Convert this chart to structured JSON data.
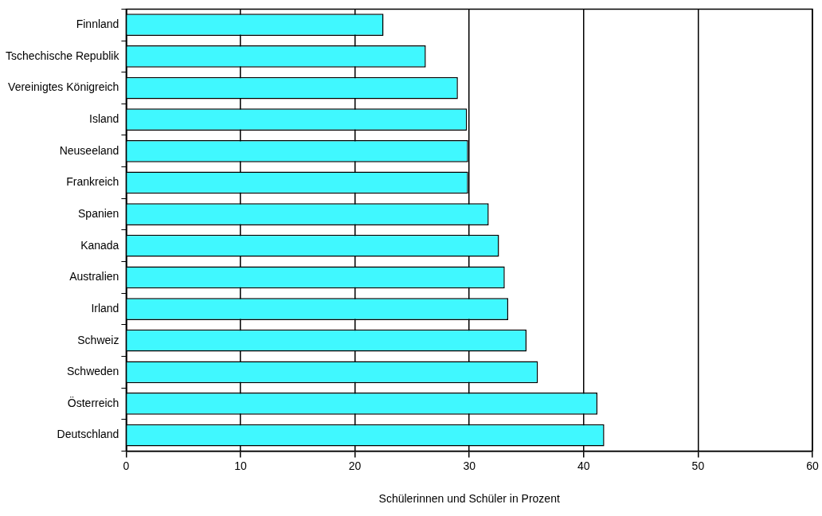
{
  "chart_data": {
    "type": "bar",
    "orientation": "horizontal",
    "xlabel": "Schülerinnen und Schüler in Prozent",
    "categories": [
      "Finnland",
      "Tschechische Republik",
      "Vereinigtes Königreich",
      "Island",
      "Neuseeland",
      "Frankreich",
      "Spanien",
      "Kanada",
      "Australien",
      "Irland",
      "Schweiz",
      "Schweden",
      "Österreich",
      "Deutschland"
    ],
    "values": [
      22.5,
      26.2,
      29.0,
      29.8,
      29.9,
      29.9,
      31.7,
      32.6,
      33.1,
      33.4,
      35.0,
      36.0,
      41.2,
      41.8
    ],
    "color": "#40f8ff",
    "xlim": [
      0,
      60
    ],
    "xticks": [
      0,
      10,
      20,
      30,
      40,
      50,
      60
    ],
    "grid": "x",
    "legend": false
  }
}
